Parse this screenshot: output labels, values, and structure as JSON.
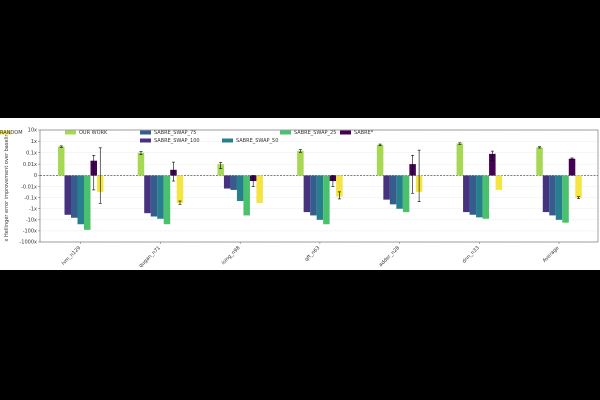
{
  "chart_data": {
    "type": "bar",
    "title": "",
    "xlabel": "",
    "ylabel": "x Hellinger error improvement over baseline",
    "yscale": "symlog",
    "ylim": [
      -1000,
      10
    ],
    "yticks": [
      {
        "value": 10,
        "label": "10x"
      },
      {
        "value": 1,
        "label": "1x"
      },
      {
        "value": 0.1,
        "label": "0.1x"
      },
      {
        "value": 0.01,
        "label": "0.01x"
      },
      {
        "value": 0,
        "label": "0"
      },
      {
        "value": -0.01,
        "label": "-0.01x"
      },
      {
        "value": -0.1,
        "label": "-0.1x"
      },
      {
        "value": -1,
        "label": "-1x"
      },
      {
        "value": -10,
        "label": "-10x"
      },
      {
        "value": -100,
        "label": "-100x"
      },
      {
        "value": -1000,
        "label": "-1000x"
      }
    ],
    "grid": true,
    "legend_position": "top-left",
    "categories": [
      "ivm_n129",
      "qugan_n71",
      "ising_n98",
      "qft_n63",
      "adder_n28",
      "dnn_n33",
      "Average"
    ],
    "series": [
      {
        "name": "OUR WORK",
        "color": "#a6d854",
        "values": [
          0.35,
          0.1,
          0.01,
          0.15,
          0.5,
          0.65,
          0.3
        ],
        "errors": [
          0.05,
          0.03,
          0.004,
          0.04,
          0.08,
          0.1,
          0.04
        ]
      },
      {
        "name": "SABRE_SWAP_100",
        "color": "#46327e",
        "values": [
          -3.5,
          -2.5,
          -0.015,
          -2,
          -0.15,
          -2,
          -2
        ],
        "errors": [
          0,
          0,
          0,
          0,
          0,
          0,
          0
        ]
      },
      {
        "name": "SABRE_SWAP_75",
        "color": "#365c8d",
        "values": [
          -6.5,
          -5,
          -0.02,
          -4,
          -0.4,
          -3.5,
          -4
        ],
        "errors": [
          0,
          0,
          0,
          0,
          0,
          0,
          0
        ]
      },
      {
        "name": "SABRE_SWAP_50",
        "color": "#277f8e",
        "values": [
          -25,
          -8,
          -0.2,
          -10,
          -1,
          -6,
          -10
        ],
        "errors": [
          0,
          0,
          0,
          0,
          0,
          0,
          0
        ]
      },
      {
        "name": "SABRE_SWAP_25",
        "color": "#4ac16d",
        "values": [
          -80,
          -25,
          -4,
          -25,
          -2,
          -8,
          -18
        ],
        "errors": [
          0,
          0,
          0,
          0,
          0,
          0,
          0
        ]
      },
      {
        "name": "SABRE*",
        "color": "#440154",
        "values": [
          0.02,
          0.005,
          -0.005,
          -0.005,
          0.01,
          0.08,
          0.03
        ],
        "errors": [
          0.04,
          0.01,
          0.005,
          0.005,
          0.05,
          0.06,
          0.005
        ]
      },
      {
        "name": "RANDOM",
        "color": "#f4e542",
        "values": [
          -0.03,
          -0.3,
          -0.3,
          -0.08,
          -0.03,
          -0.02,
          -0.1
        ],
        "errors": [
          0.3,
          0.1,
          0,
          0.05,
          0.2,
          0,
          0.02
        ]
      }
    ]
  }
}
